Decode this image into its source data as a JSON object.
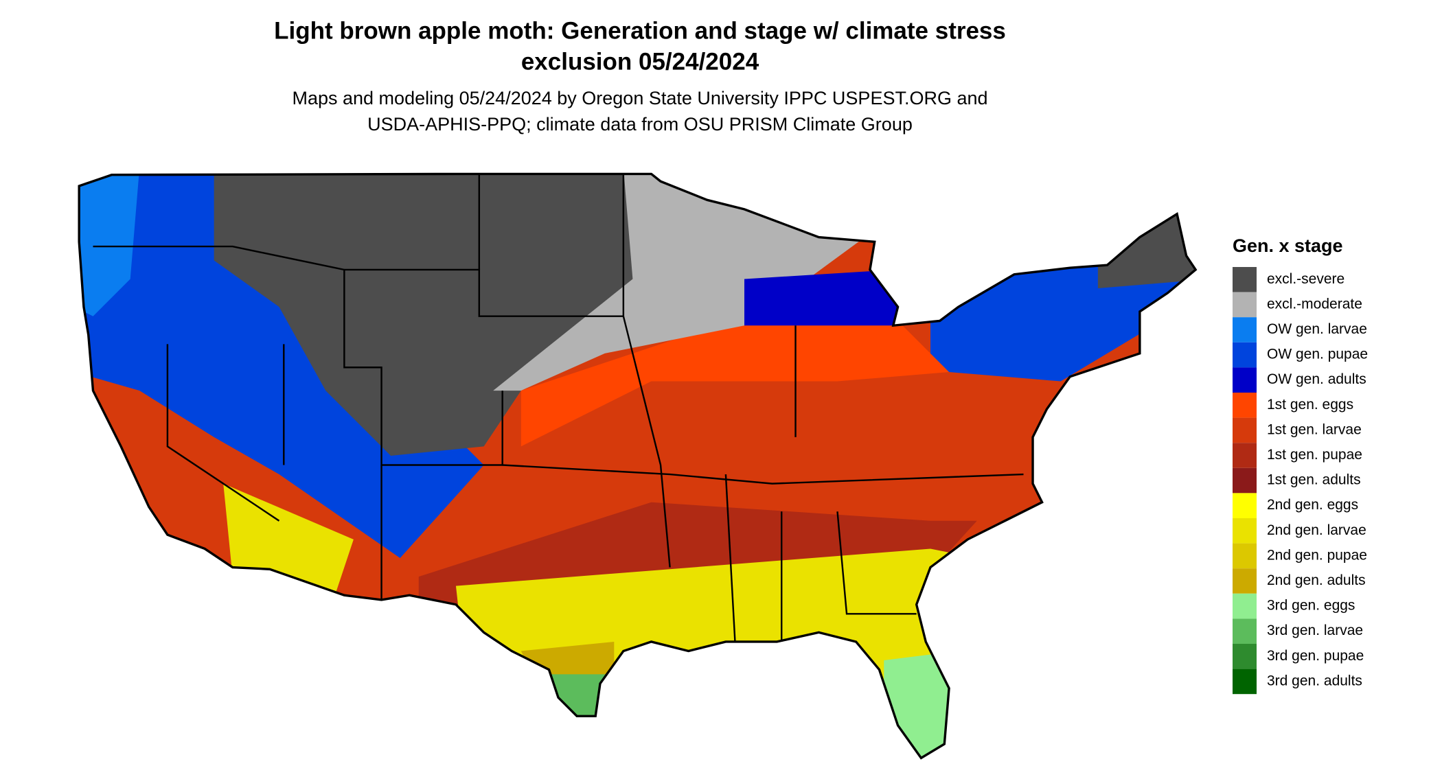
{
  "title": [
    "Light brown apple moth: Generation and stage w/ climate stress",
    "exclusion 05/24/2024"
  ],
  "subtitle": [
    "Maps and modeling 05/24/2024 by Oregon State University IPPC USPEST.ORG and",
    "USDA-APHIS-PPQ; climate data from OSU PRISM Climate Group"
  ],
  "legend": {
    "title": "Gen. x stage",
    "items": [
      {
        "label": "excl.-severe",
        "color": "#4d4d4d"
      },
      {
        "label": "excl.-moderate",
        "color": "#b3b3b3"
      },
      {
        "label": "OW gen. larvae",
        "color": "#0a7df0"
      },
      {
        "label": "OW gen. pupae",
        "color": "#0044dd"
      },
      {
        "label": "OW gen. adults",
        "color": "#0000c8"
      },
      {
        "label": "1st gen. eggs",
        "color": "#ff4500"
      },
      {
        "label": "1st gen. larvae",
        "color": "#d63a0c"
      },
      {
        "label": "1st gen. pupae",
        "color": "#b02a14"
      },
      {
        "label": "1st gen. adults",
        "color": "#8b1a1a"
      },
      {
        "label": "2nd gen. eggs",
        "color": "#ffff00"
      },
      {
        "label": "2nd gen. larvae",
        "color": "#eae200"
      },
      {
        "label": "2nd gen. pupae",
        "color": "#dcc800"
      },
      {
        "label": "2nd gen. adults",
        "color": "#ccaa00"
      },
      {
        "label": "3rd gen. eggs",
        "color": "#90ee90"
      },
      {
        "label": "3rd gen. larvae",
        "color": "#5cbc5c"
      },
      {
        "label": "3rd gen. pupae",
        "color": "#2e8b2e"
      },
      {
        "label": "3rd gen. adults",
        "color": "#006400"
      }
    ]
  }
}
